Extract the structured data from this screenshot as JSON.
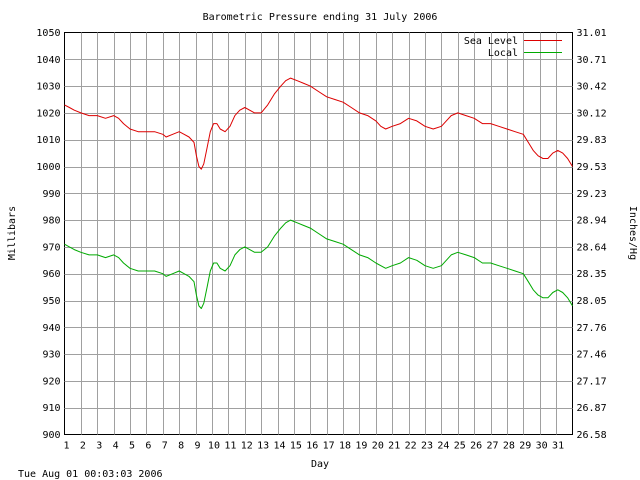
{
  "chart_data": {
    "type": "line",
    "title": "Barometric Pressure ending 31 July 2006",
    "xlabel": "Day",
    "ylabel": "Millibars",
    "y2label": "Inches/Hg",
    "footer": "Tue Aug 01 00:03:03 2006",
    "grid": true,
    "legend_position": "top-right",
    "xlim": [
      1,
      32
    ],
    "ylim": [
      900,
      1050
    ],
    "x_ticks": [
      1,
      2,
      3,
      4,
      5,
      6,
      7,
      8,
      9,
      10,
      11,
      12,
      13,
      14,
      15,
      16,
      17,
      18,
      19,
      20,
      21,
      22,
      23,
      24,
      25,
      26,
      27,
      28,
      29,
      30,
      31
    ],
    "y_ticks": [
      900,
      910,
      920,
      930,
      940,
      950,
      960,
      970,
      980,
      990,
      1000,
      1010,
      1020,
      1030,
      1040,
      1050
    ],
    "y2_ticks": [
      "26.58",
      "26.87",
      "27.17",
      "27.46",
      "27.76",
      "28.05",
      "28.35",
      "28.64",
      "28.94",
      "29.23",
      "29.53",
      "29.83",
      "30.12",
      "30.42",
      "30.71",
      "31.01"
    ],
    "series": [
      {
        "name": "Sea Level",
        "color": "#dd0000",
        "x": [
          1,
          1.3,
          1.6,
          2,
          2.5,
          3,
          3.5,
          4,
          4.3,
          4.6,
          5,
          5.5,
          6,
          6.5,
          7,
          7.2,
          7.6,
          8,
          8.3,
          8.6,
          8.9,
          9.05,
          9.2,
          9.35,
          9.5,
          9.7,
          9.9,
          10.1,
          10.3,
          10.5,
          10.8,
          11.1,
          11.4,
          11.7,
          12,
          12.3,
          12.6,
          13,
          13.4,
          13.8,
          14.2,
          14.5,
          14.8,
          15.2,
          15.6,
          16,
          16.5,
          17,
          17.5,
          18,
          18.5,
          19,
          19.5,
          20,
          20.3,
          20.6,
          21,
          21.5,
          22,
          22.5,
          23,
          23.5,
          24,
          24.3,
          24.6,
          25,
          25.5,
          26,
          26.5,
          27,
          27.5,
          28,
          28.5,
          29,
          29.3,
          29.6,
          29.9,
          30.2,
          30.5,
          30.8,
          31.1,
          31.4,
          31.7,
          32
        ],
        "values": [
          1023,
          1022,
          1021,
          1020,
          1019,
          1019,
          1018,
          1019,
          1018,
          1016,
          1014,
          1013,
          1013,
          1013,
          1012,
          1011,
          1012,
          1013,
          1012,
          1011,
          1009,
          1004,
          1000,
          999,
          1001,
          1007,
          1013,
          1016,
          1016,
          1014,
          1013,
          1015,
          1019,
          1021,
          1022,
          1021,
          1020,
          1020,
          1023,
          1027,
          1030,
          1032,
          1033,
          1032,
          1031,
          1030,
          1028,
          1026,
          1025,
          1024,
          1022,
          1020,
          1019,
          1017,
          1015,
          1014,
          1015,
          1016,
          1018,
          1017,
          1015,
          1014,
          1015,
          1017,
          1019,
          1020,
          1019,
          1018,
          1016,
          1016,
          1015,
          1014,
          1013,
          1012,
          1009,
          1006,
          1004,
          1003,
          1003,
          1005,
          1006,
          1005,
          1003,
          1000
        ]
      },
      {
        "name": "Local",
        "color": "#00aa00",
        "x": [
          1,
          1.3,
          1.6,
          2,
          2.5,
          3,
          3.5,
          4,
          4.3,
          4.6,
          5,
          5.5,
          6,
          6.5,
          7,
          7.2,
          7.6,
          8,
          8.3,
          8.6,
          8.9,
          9.05,
          9.2,
          9.35,
          9.5,
          9.7,
          9.9,
          10.1,
          10.3,
          10.5,
          10.8,
          11.1,
          11.4,
          11.7,
          12,
          12.3,
          12.6,
          13,
          13.4,
          13.8,
          14.2,
          14.5,
          14.8,
          15.2,
          15.6,
          16,
          16.5,
          17,
          17.5,
          18,
          18.5,
          19,
          19.5,
          20,
          20.3,
          20.6,
          21,
          21.5,
          22,
          22.5,
          23,
          23.5,
          24,
          24.3,
          24.6,
          25,
          25.5,
          26,
          26.5,
          27,
          27.5,
          28,
          28.5,
          29,
          29.3,
          29.6,
          29.9,
          30.2,
          30.5,
          30.8,
          31.1,
          31.4,
          31.7,
          32
        ],
        "values": [
          971,
          970,
          969,
          968,
          967,
          967,
          966,
          967,
          966,
          964,
          962,
          961,
          961,
          961,
          960,
          959,
          960,
          961,
          960,
          959,
          957,
          952,
          948,
          947,
          949,
          955,
          961,
          964,
          964,
          962,
          961,
          963,
          967,
          969,
          970,
          969,
          968,
          968,
          970,
          974,
          977,
          979,
          980,
          979,
          978,
          977,
          975,
          973,
          972,
          971,
          969,
          967,
          966,
          964,
          963,
          962,
          963,
          964,
          966,
          965,
          963,
          962,
          963,
          965,
          967,
          968,
          967,
          966,
          964,
          964,
          963,
          962,
          961,
          960,
          957,
          954,
          952,
          951,
          951,
          953,
          954,
          953,
          951,
          948
        ]
      }
    ]
  }
}
